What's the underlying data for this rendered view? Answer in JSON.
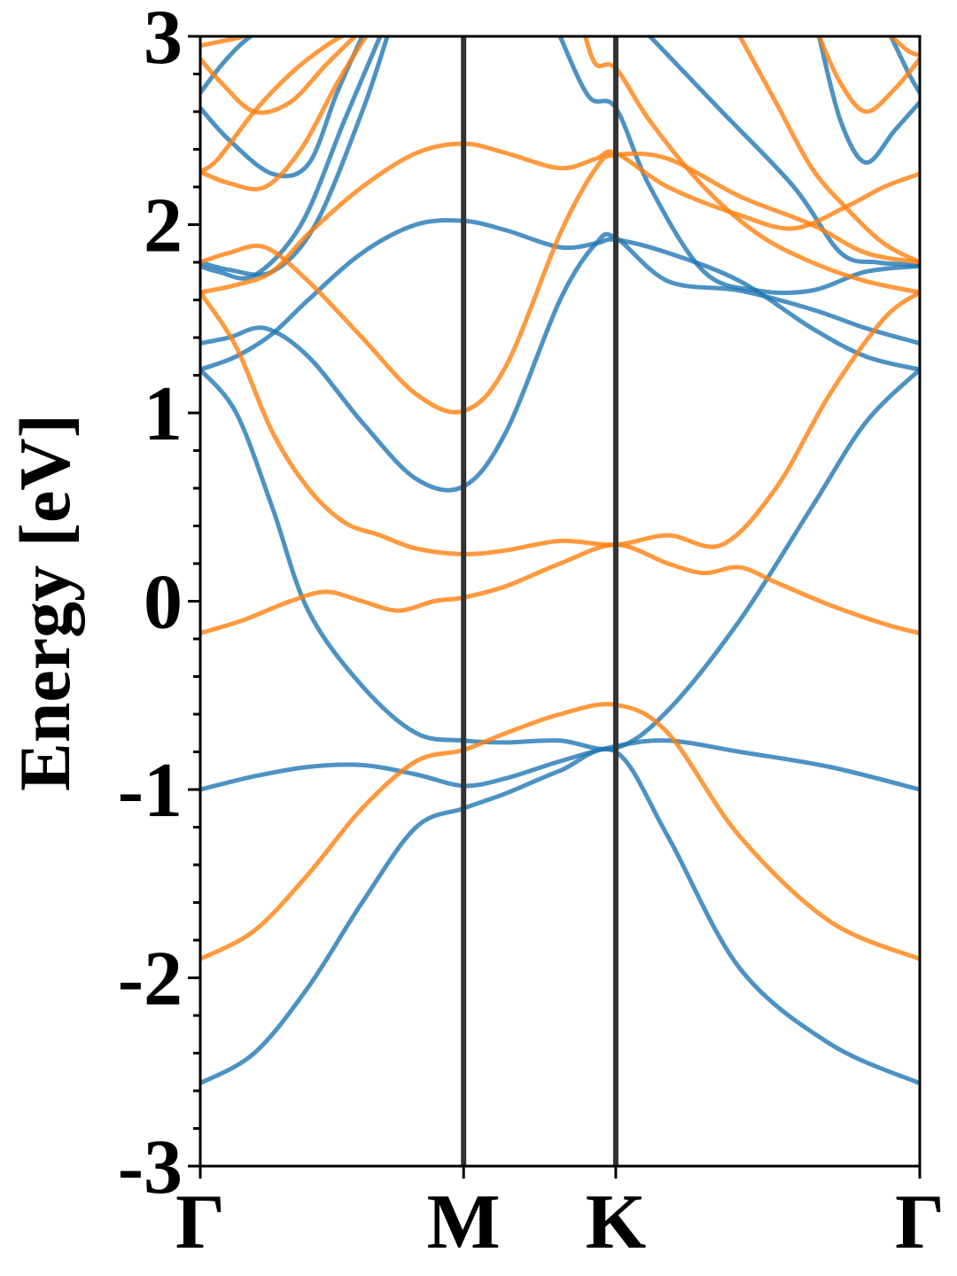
{
  "chart_data": {
    "type": "line",
    "title": "",
    "xlabel": "",
    "ylabel": "Energy [eV]",
    "ylim": [
      -3,
      3
    ],
    "xlim": [
      0,
      2.0
    ],
    "grid": false,
    "legend": "none",
    "colors": {
      "spin_up": "#1f77b4",
      "spin_down": "#ff7f0e",
      "kpoint_line": "#333333"
    },
    "xticks": [
      {
        "label": "Γ",
        "x": 0
      },
      {
        "label": "M",
        "x": 0.732
      },
      {
        "label": "K",
        "x": 1.155
      },
      {
        "label": "Γ",
        "x": 2.0
      }
    ],
    "yticks": [
      {
        "label": "3",
        "y": 3
      },
      {
        "label": "2",
        "y": 2
      },
      {
        "label": "1",
        "y": 1
      },
      {
        "label": "0",
        "y": 0
      },
      {
        "label": "-1",
        "y": -1
      },
      {
        "label": "-2",
        "y": -2
      },
      {
        "label": "-3",
        "y": -3
      }
    ],
    "vlines": [
      0.732,
      1.155
    ],
    "series": [
      {
        "color": "blue",
        "x": [
          0,
          0.15,
          0.3,
          0.45,
          0.6,
          0.732,
          0.85,
          1.0,
          1.155,
          1.3,
          1.5,
          1.75,
          2.0
        ],
        "y": [
          -2.56,
          -2.4,
          -2.05,
          -1.6,
          -1.2,
          -1.1,
          -1.02,
          -0.9,
          -0.8,
          -1.25,
          -1.95,
          -2.35,
          -2.56
        ]
      },
      {
        "color": "blue",
        "x": [
          0,
          0.15,
          0.3,
          0.45,
          0.6,
          0.732,
          0.85,
          1.0,
          1.155,
          1.3,
          1.5,
          1.75,
          2.0
        ],
        "y": [
          -1.0,
          -0.93,
          -0.88,
          -0.87,
          -0.92,
          -0.98,
          -0.94,
          -0.85,
          -0.77,
          -0.74,
          -0.8,
          -0.88,
          -1.0
        ]
      },
      {
        "color": "blue",
        "x": [
          0,
          0.1,
          0.2,
          0.3,
          0.45,
          0.6,
          0.732,
          0.85,
          1.0,
          1.155,
          1.3,
          1.5,
          1.7,
          1.85,
          2.0
        ],
        "y": [
          1.23,
          1.0,
          0.5,
          -0.05,
          -0.45,
          -0.7,
          -0.74,
          -0.75,
          -0.74,
          -0.78,
          -0.58,
          -0.1,
          0.5,
          0.95,
          1.23
        ]
      },
      {
        "color": "blue",
        "x": [
          0,
          0.08,
          0.18,
          0.3,
          0.45,
          0.6,
          0.732,
          0.85,
          1.0,
          1.1,
          1.155,
          1.3,
          1.5,
          1.7,
          1.85,
          2.0
        ],
        "y": [
          1.37,
          1.4,
          1.45,
          1.3,
          0.95,
          0.65,
          0.61,
          0.9,
          1.6,
          1.9,
          1.93,
          1.7,
          1.65,
          1.55,
          1.45,
          1.37
        ]
      },
      {
        "color": "blue",
        "x": [
          0,
          0.1,
          0.2,
          0.3,
          0.45,
          0.6,
          0.732,
          0.85,
          1.0,
          1.1,
          1.155,
          1.3,
          1.5,
          1.7,
          1.85,
          2.0
        ],
        "y": [
          1.23,
          1.3,
          1.42,
          1.6,
          1.85,
          2.0,
          2.02,
          1.97,
          1.88,
          1.9,
          1.92,
          1.85,
          1.7,
          1.45,
          1.3,
          1.23
        ]
      },
      {
        "color": "blue",
        "x": [
          0,
          0.08,
          0.2,
          0.32,
          0.45,
          0.52
        ],
        "y": [
          1.8,
          1.76,
          1.75,
          2.0,
          2.6,
          3.0
        ]
      },
      {
        "color": "blue",
        "x": [
          0,
          0.05,
          0.15,
          0.28,
          0.4,
          0.5
        ],
        "y": [
          1.78,
          1.75,
          1.73,
          2.0,
          2.55,
          3.0
        ]
      },
      {
        "color": "blue",
        "x": [
          0,
          0.08,
          0.2,
          0.3,
          0.38,
          0.45
        ],
        "y": [
          2.62,
          2.45,
          2.27,
          2.32,
          2.7,
          3.0
        ]
      },
      {
        "color": "blue",
        "x": [
          0,
          0.06,
          0.12,
          0.18
        ],
        "y": [
          2.7,
          2.85,
          2.97,
          3.05
        ]
      },
      {
        "color": "blue",
        "x": [
          1.0,
          1.08,
          1.155,
          1.25,
          1.4,
          1.55,
          1.7,
          1.85,
          2.0
        ],
        "y": [
          3.0,
          2.68,
          2.62,
          2.2,
          1.75,
          1.65,
          1.65,
          1.75,
          1.78
        ]
      },
      {
        "color": "blue",
        "x": [
          1.25,
          1.45,
          1.65,
          1.78,
          1.88,
          1.95,
          2.0
        ],
        "y": [
          3.0,
          2.6,
          2.2,
          1.85,
          1.8,
          1.79,
          1.78
        ]
      },
      {
        "color": "blue",
        "x": [
          1.72,
          1.78,
          1.85,
          1.93,
          2.0
        ],
        "y": [
          3.0,
          2.55,
          2.33,
          2.5,
          2.65
        ]
      },
      {
        "color": "blue",
        "x": [
          1.92,
          1.97,
          2.0
        ],
        "y": [
          3.0,
          2.8,
          2.7
        ]
      },
      {
        "color": "orange",
        "x": [
          0,
          0.15,
          0.3,
          0.45,
          0.6,
          0.732,
          0.85,
          1.0,
          1.155,
          1.3,
          1.5,
          1.75,
          2.0
        ],
        "y": [
          -1.9,
          -1.75,
          -1.45,
          -1.1,
          -0.85,
          -0.79,
          -0.7,
          -0.6,
          -0.55,
          -0.7,
          -1.25,
          -1.7,
          -1.9
        ]
      },
      {
        "color": "orange",
        "x": [
          0,
          0.12,
          0.25,
          0.35,
          0.45,
          0.55,
          0.65,
          0.732,
          0.85,
          1.0,
          1.155,
          1.3,
          1.4,
          1.5,
          1.6,
          1.75,
          1.9,
          2.0
        ],
        "y": [
          -0.17,
          -0.1,
          0.0,
          0.05,
          0.0,
          -0.05,
          0.0,
          0.02,
          0.08,
          0.2,
          0.3,
          0.2,
          0.15,
          0.18,
          0.1,
          -0.02,
          -0.12,
          -0.17
        ]
      },
      {
        "color": "orange",
        "x": [
          0,
          0.1,
          0.2,
          0.3,
          0.4,
          0.5,
          0.6,
          0.732,
          0.85,
          1.0,
          1.155,
          1.3,
          1.45,
          1.6,
          1.75,
          1.9,
          2.0
        ],
        "y": [
          1.64,
          1.35,
          0.9,
          0.6,
          0.42,
          0.35,
          0.28,
          0.25,
          0.27,
          0.32,
          0.3,
          0.35,
          0.3,
          0.6,
          1.1,
          1.5,
          1.64
        ]
      },
      {
        "color": "orange",
        "x": [
          0,
          0.08,
          0.18,
          0.3,
          0.45,
          0.6,
          0.732,
          0.85,
          1.0,
          1.1,
          1.155,
          1.3,
          1.5,
          1.7,
          1.85,
          2.0
        ],
        "y": [
          1.8,
          1.85,
          1.88,
          1.7,
          1.4,
          1.1,
          1.01,
          1.25,
          1.95,
          2.3,
          2.37,
          2.35,
          2.15,
          2.0,
          1.85,
          1.8
        ]
      },
      {
        "color": "orange",
        "x": [
          0,
          0.1,
          0.2,
          0.3,
          0.45,
          0.6,
          0.732,
          0.85,
          1.0,
          1.1,
          1.155,
          1.3,
          1.5,
          1.65,
          1.8,
          1.9,
          2.0
        ],
        "y": [
          1.64,
          1.68,
          1.75,
          1.95,
          2.2,
          2.38,
          2.43,
          2.38,
          2.3,
          2.35,
          2.38,
          2.2,
          2.05,
          1.98,
          2.1,
          2.2,
          2.27
        ]
      },
      {
        "color": "orange",
        "x": [
          0,
          0.08,
          0.18,
          0.28,
          0.38,
          0.46
        ],
        "y": [
          2.28,
          2.22,
          2.2,
          2.4,
          2.75,
          3.0
        ]
      },
      {
        "color": "orange",
        "x": [
          0,
          0.05,
          0.15,
          0.25,
          0.35,
          0.44
        ],
        "y": [
          2.28,
          2.35,
          2.6,
          2.8,
          2.95,
          3.05
        ]
      },
      {
        "color": "orange",
        "x": [
          0,
          0.06,
          0.15,
          0.25,
          0.35,
          0.43
        ],
        "y": [
          2.88,
          2.75,
          2.6,
          2.65,
          2.85,
          3.0
        ]
      },
      {
        "color": "orange",
        "x": [
          0,
          0.05,
          0.12,
          0.18
        ],
        "y": [
          2.95,
          2.97,
          3.0,
          3.05
        ]
      },
      {
        "color": "orange",
        "x": [
          1.07,
          1.1,
          1.155,
          1.25,
          1.4,
          1.55,
          1.7,
          1.85,
          2.0
        ],
        "y": [
          3.0,
          2.85,
          2.83,
          2.55,
          2.2,
          1.95,
          1.8,
          1.7,
          1.64
        ]
      },
      {
        "color": "orange",
        "x": [
          1.5,
          1.6,
          1.7,
          1.8,
          1.9,
          2.0
        ],
        "y": [
          3.0,
          2.65,
          2.3,
          2.08,
          1.9,
          1.8
        ]
      },
      {
        "color": "orange",
        "x": [
          1.72,
          1.78,
          1.85,
          1.93,
          2.0
        ],
        "y": [
          3.0,
          2.75,
          2.6,
          2.72,
          2.88
        ]
      },
      {
        "color": "orange",
        "x": [
          1.92,
          1.97,
          2.0
        ],
        "y": [
          3.0,
          2.92,
          2.9
        ]
      }
    ]
  }
}
